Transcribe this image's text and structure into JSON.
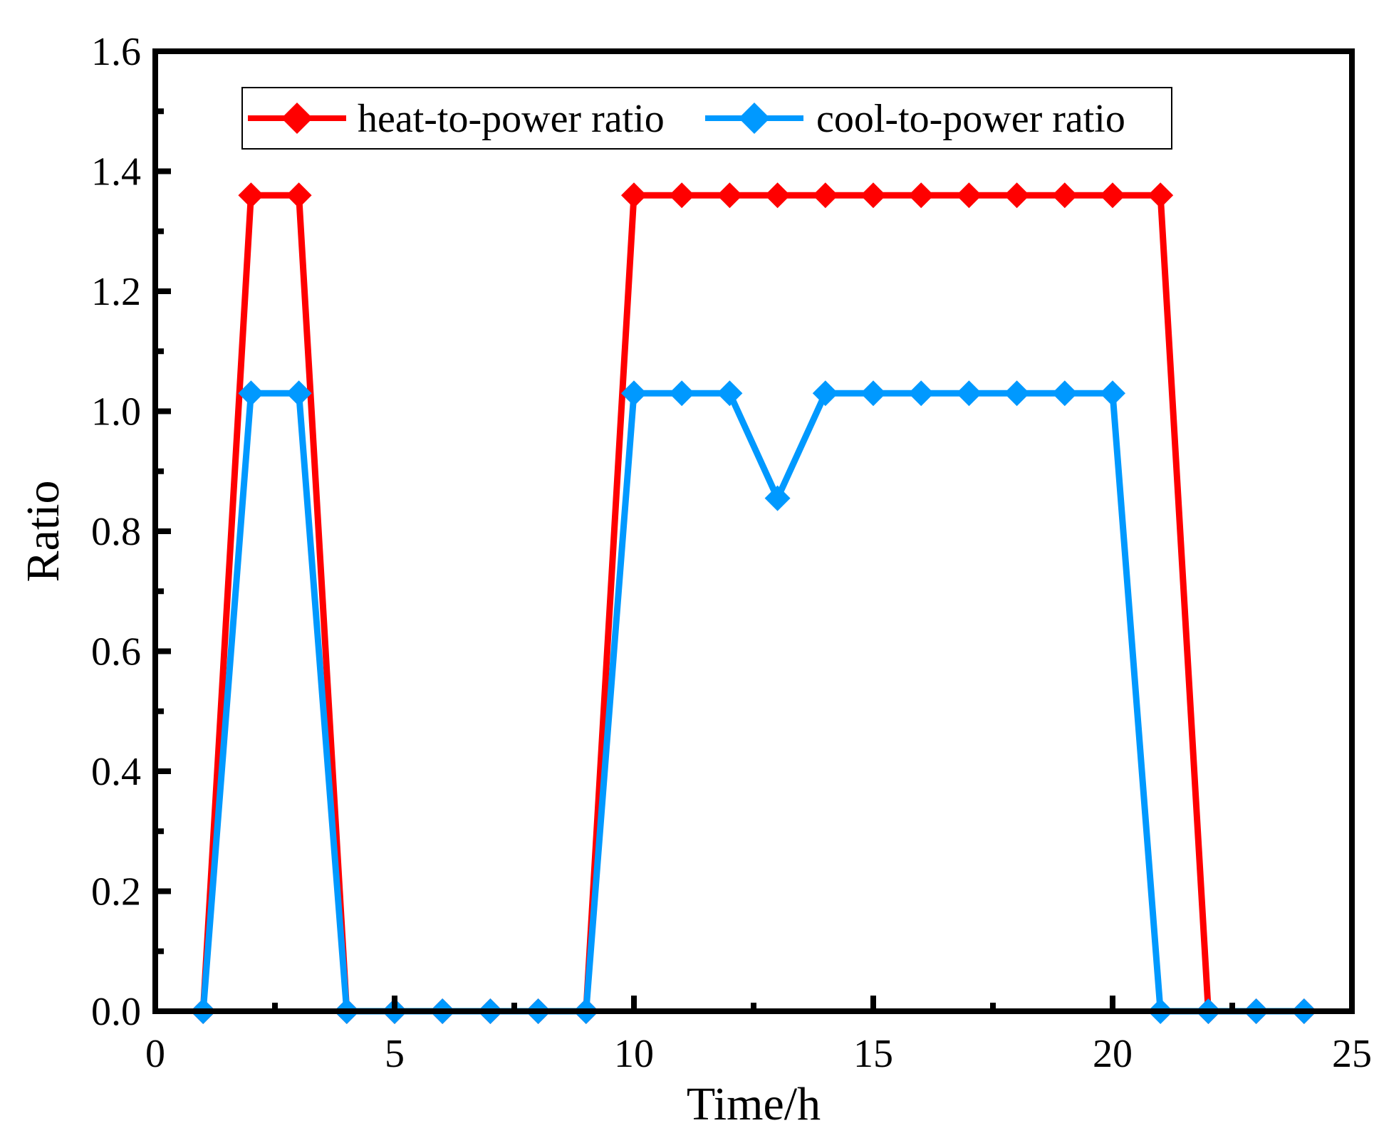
{
  "chart_data": {
    "type": "line",
    "title": "",
    "xlabel": "Time/h",
    "ylabel": "Ratio",
    "xlim": [
      0,
      25
    ],
    "ylim": [
      0,
      1.6
    ],
    "x_ticks": [
      0,
      5,
      10,
      15,
      20,
      25
    ],
    "x_tick_labels": [
      "0",
      "5",
      "10",
      "15",
      "20",
      "25"
    ],
    "y_ticks": [
      0,
      0.2,
      0.4,
      0.6,
      0.8,
      1.0,
      1.2,
      1.4,
      1.6
    ],
    "y_tick_labels": [
      "0.0",
      "0.2",
      "0.4",
      "0.6",
      "0.8",
      "1.0",
      "1.2",
      "1.4",
      "1.6"
    ],
    "x_minor_step": 2.5,
    "y_minor_step": 0.1,
    "grid": false,
    "legend_position": "top",
    "x": [
      1,
      2,
      3,
      4,
      5,
      6,
      7,
      8,
      9,
      10,
      11,
      12,
      13,
      14,
      15,
      16,
      17,
      18,
      19,
      20,
      21,
      22,
      23,
      24
    ],
    "series": [
      {
        "name": "heat-to-power ratio",
        "color": "#ff0000",
        "marker": "diamond",
        "values": [
          0,
          1.36,
          1.36,
          0,
          0,
          0,
          0,
          0,
          0,
          1.36,
          1.36,
          1.36,
          1.36,
          1.36,
          1.36,
          1.36,
          1.36,
          1.36,
          1.36,
          1.36,
          1.36,
          0,
          0,
          0
        ]
      },
      {
        "name": "cool-to-power ratio",
        "color": "#0099ff",
        "marker": "diamond",
        "values": [
          0,
          1.03,
          1.03,
          0,
          0,
          0,
          0,
          0,
          0,
          1.03,
          1.03,
          1.03,
          0.855,
          1.03,
          1.03,
          1.03,
          1.03,
          1.03,
          1.03,
          1.03,
          0,
          0,
          0,
          0
        ]
      }
    ]
  }
}
